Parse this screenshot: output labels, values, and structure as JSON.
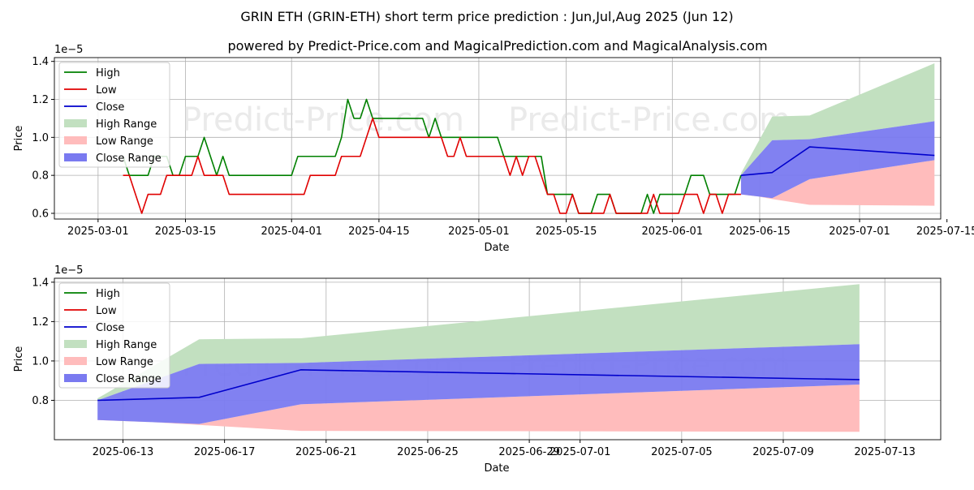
{
  "title": "GRIN ETH (GRIN-ETH) short term price prediction : Jun,Jul,Aug 2025 (Jun 12)",
  "subtitle": "powered by Predict-Price.com and MagicalPrediction.com and MagicalAnalysis.com",
  "watermark": "Predict-Price.com",
  "colors": {
    "high": "#008000",
    "low": "#e00000",
    "close": "#0000cc",
    "high_range": "#c2e0c0",
    "low_range": "#ffbcbc",
    "close_range": "#7a7af0"
  },
  "chart_data": [
    {
      "type": "line",
      "title": "",
      "xlabel": "Date",
      "ylabel": "Price",
      "scale_label": "1e−5",
      "ylim": [
        0.57,
        1.42
      ],
      "xlim_days": [
        -7,
        135
      ],
      "yticks": [
        0.6,
        0.8,
        1.0,
        1.2,
        1.4
      ],
      "xticks": [
        {
          "day": 0,
          "label": "2025-03-01"
        },
        {
          "day": 14,
          "label": "2025-03-15"
        },
        {
          "day": 31,
          "label": "2025-04-01"
        },
        {
          "day": 45,
          "label": "2025-04-15"
        },
        {
          "day": 61,
          "label": "2025-05-01"
        },
        {
          "day": 75,
          "label": "2025-05-15"
        },
        {
          "day": 92,
          "label": "2025-06-01"
        },
        {
          "day": 106,
          "label": "2025-06-15"
        },
        {
          "day": 122,
          "label": "2025-07-01"
        },
        {
          "day": 136,
          "label": "2025-07-15"
        }
      ],
      "legend": [
        "High",
        "Low",
        "Close",
        "High Range",
        "Low Range",
        "Close Range"
      ],
      "legend_position": "upper-left",
      "series": [
        {
          "name": "High",
          "key": "high",
          "x": [
            4,
            5,
            6,
            7,
            8,
            9,
            10,
            11,
            12,
            13,
            14,
            15,
            16,
            17,
            18,
            19,
            20,
            21,
            22,
            23,
            24,
            25,
            26,
            27,
            28,
            29,
            30,
            31,
            32,
            33,
            34,
            35,
            36,
            37,
            38,
            39,
            40,
            41,
            42,
            43,
            44,
            45,
            46,
            47,
            48,
            49,
            50,
            51,
            52,
            53,
            54,
            55,
            56,
            57,
            58,
            59,
            60,
            61,
            62,
            63,
            64,
            65,
            66,
            67,
            68,
            69,
            70,
            71,
            72,
            73,
            74,
            75,
            76,
            77,
            78,
            79,
            80,
            81,
            82,
            83,
            84,
            85,
            86,
            87,
            88,
            89,
            90,
            91,
            92,
            93,
            94,
            95,
            96,
            97,
            98,
            99,
            100,
            101,
            102,
            103
          ],
          "values": [
            0.9,
            0.8,
            0.8,
            0.8,
            0.8,
            0.9,
            0.9,
            0.9,
            0.8,
            0.8,
            0.9,
            0.9,
            0.9,
            1.0,
            0.9,
            0.8,
            0.9,
            0.8,
            0.8,
            0.8,
            0.8,
            0.8,
            0.8,
            0.8,
            0.8,
            0.8,
            0.8,
            0.8,
            0.9,
            0.9,
            0.9,
            0.9,
            0.9,
            0.9,
            0.9,
            1.0,
            1.2,
            1.1,
            1.1,
            1.2,
            1.1,
            1.1,
            1.1,
            1.1,
            1.1,
            1.1,
            1.1,
            1.1,
            1.1,
            1.0,
            1.1,
            1.0,
            1.0,
            1.0,
            1.0,
            1.0,
            1.0,
            1.0,
            1.0,
            1.0,
            1.0,
            0.9,
            0.9,
            0.9,
            0.9,
            0.9,
            0.9,
            0.9,
            0.7,
            0.7,
            0.7,
            0.7,
            0.7,
            0.6,
            0.6,
            0.6,
            0.7,
            0.7,
            0.7,
            0.6,
            0.6,
            0.6,
            0.6,
            0.6,
            0.7,
            0.6,
            0.7,
            0.7,
            0.7,
            0.7,
            0.7,
            0.8,
            0.8,
            0.8,
            0.7,
            0.7,
            0.7,
            0.7,
            0.7,
            0.8
          ]
        },
        {
          "name": "Low",
          "key": "low",
          "x": [
            4,
            5,
            6,
            7,
            8,
            9,
            10,
            11,
            12,
            13,
            14,
            15,
            16,
            17,
            18,
            19,
            20,
            21,
            22,
            23,
            24,
            25,
            26,
            27,
            28,
            29,
            30,
            31,
            32,
            33,
            34,
            35,
            36,
            37,
            38,
            39,
            40,
            41,
            42,
            43,
            44,
            45,
            46,
            47,
            48,
            49,
            50,
            51,
            52,
            53,
            54,
            55,
            56,
            57,
            58,
            59,
            60,
            61,
            62,
            63,
            64,
            65,
            66,
            67,
            68,
            69,
            70,
            71,
            72,
            73,
            74,
            75,
            76,
            77,
            78,
            79,
            80,
            81,
            82,
            83,
            84,
            85,
            86,
            87,
            88,
            89,
            90,
            91,
            92,
            93,
            94,
            95,
            96,
            97,
            98,
            99,
            100,
            101,
            102,
            103
          ],
          "values": [
            0.8,
            0.8,
            0.7,
            0.6,
            0.7,
            0.7,
            0.7,
            0.8,
            0.8,
            0.8,
            0.8,
            0.8,
            0.9,
            0.8,
            0.8,
            0.8,
            0.8,
            0.7,
            0.7,
            0.7,
            0.7,
            0.7,
            0.7,
            0.7,
            0.7,
            0.7,
            0.7,
            0.7,
            0.7,
            0.7,
            0.8,
            0.8,
            0.8,
            0.8,
            0.8,
            0.9,
            0.9,
            0.9,
            0.9,
            1.0,
            1.1,
            1.0,
            1.0,
            1.0,
            1.0,
            1.0,
            1.0,
            1.0,
            1.0,
            1.0,
            1.0,
            1.0,
            0.9,
            0.9,
            1.0,
            0.9,
            0.9,
            0.9,
            0.9,
            0.9,
            0.9,
            0.9,
            0.8,
            0.9,
            0.8,
            0.9,
            0.9,
            0.8,
            0.7,
            0.7,
            0.6,
            0.6,
            0.7,
            0.6,
            0.6,
            0.6,
            0.6,
            0.6,
            0.7,
            0.6,
            0.6,
            0.6,
            0.6,
            0.6,
            0.6,
            0.7,
            0.6,
            0.6,
            0.6,
            0.6,
            0.7,
            0.7,
            0.7,
            0.6,
            0.7,
            0.7,
            0.6,
            0.7,
            0.7,
            0.7
          ]
        }
      ],
      "forecast": {
        "x": [
          103,
          108,
          114,
          134
        ],
        "close": [
          0.8,
          0.815,
          0.95,
          0.905
        ],
        "close_range_upper": [
          0.8,
          0.985,
          0.99,
          1.085
        ],
        "close_range_lower": [
          0.7,
          0.68,
          0.78,
          0.88
        ],
        "high_range_upper": [
          0.81,
          1.11,
          1.115,
          1.39
        ],
        "low_range_lower": [
          0.705,
          0.675,
          0.645,
          0.64
        ]
      }
    },
    {
      "type": "line",
      "title": "",
      "xlabel": "Date",
      "ylabel": "Price",
      "scale_label": "1e−5",
      "ylim": [
        0.6,
        1.42
      ],
      "xlim_days": [
        101.3,
        136.2
      ],
      "yticks": [
        0.8,
        1.0,
        1.2,
        1.4
      ],
      "xticks": [
        {
          "day": 104,
          "label": "2025-06-13"
        },
        {
          "day": 108,
          "label": "2025-06-17"
        },
        {
          "day": 112,
          "label": "2025-06-21"
        },
        {
          "day": 116,
          "label": "2025-06-25"
        },
        {
          "day": 120,
          "label": "2025-06-29"
        },
        {
          "day": 122,
          "label": "2025-07-01"
        },
        {
          "day": 126,
          "label": "2025-07-05"
        },
        {
          "day": 130,
          "label": "2025-07-09"
        },
        {
          "day": 134,
          "label": "2025-07-13"
        }
      ],
      "legend": [
        "High",
        "Low",
        "Close",
        "High Range",
        "Low Range",
        "Close Range"
      ],
      "legend_position": "upper-left",
      "forecast": {
        "x": [
          103,
          107,
          111,
          133
        ],
        "close": [
          0.8,
          0.815,
          0.955,
          0.905
        ],
        "close_range_upper": [
          0.8,
          0.985,
          0.99,
          1.085
        ],
        "close_range_lower": [
          0.7,
          0.68,
          0.78,
          0.88
        ],
        "high_range_upper": [
          0.81,
          1.11,
          1.115,
          1.39
        ],
        "low_range_lower": [
          0.705,
          0.675,
          0.645,
          0.64
        ]
      }
    }
  ]
}
